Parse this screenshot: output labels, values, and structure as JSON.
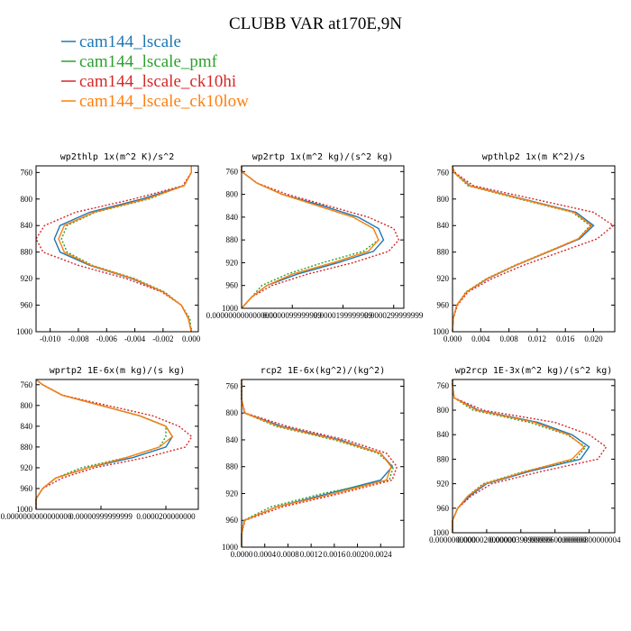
{
  "title": "CLUBB VAR at170E,9N",
  "legend": [
    {
      "name": "cam144_lscale",
      "color": "#1f77b4",
      "dash": false
    },
    {
      "name": "cam144_lscale_pmf",
      "color": "#2ca02c",
      "dash": true
    },
    {
      "name": "cam144_lscale_ck10hi",
      "color": "#d62728",
      "dash": true
    },
    {
      "name": "cam144_lscale_ck10low",
      "color": "#ff7f0e",
      "dash": false
    }
  ],
  "chart_data": [
    {
      "type": "line",
      "title": "wp2thlp   1x(m^2 K)/s^2",
      "ylim": [
        1000,
        750
      ],
      "yticks": [
        "760",
        "800",
        "840",
        "880",
        "920",
        "960",
        "1000"
      ],
      "xlim": [
        -0.011,
        0.0005
      ],
      "xticks": [
        "-0.010",
        "-0.008",
        "-0.006",
        "-0.004",
        "-0.002",
        "0.000"
      ],
      "y": [
        750,
        760,
        780,
        800,
        820,
        840,
        860,
        880,
        900,
        920,
        940,
        960,
        980,
        1000
      ],
      "series": [
        {
          "name": "cam144_lscale",
          "values": [
            0.0,
            0.0,
            -0.0005,
            -0.0035,
            -0.0072,
            -0.0093,
            -0.0097,
            -0.0093,
            -0.0072,
            -0.0042,
            -0.002,
            -0.0007,
            -0.0002,
            0.0
          ]
        },
        {
          "name": "cam144_lscale_pmf",
          "values": [
            0.0,
            0.0,
            -0.0006,
            -0.003,
            -0.0068,
            -0.0088,
            -0.0092,
            -0.0088,
            -0.007,
            -0.004,
            -0.0019,
            -0.0007,
            -0.0001,
            0.0
          ]
        },
        {
          "name": "cam144_lscale_ck10hi",
          "values": [
            0.0,
            0.0,
            -0.0006,
            -0.0041,
            -0.0082,
            -0.0104,
            -0.011,
            -0.0105,
            -0.008,
            -0.0046,
            -0.0021,
            -0.0007,
            -0.0002,
            0.0
          ]
        },
        {
          "name": "cam144_lscale_ck10low",
          "values": [
            0.0,
            0.0,
            -0.0005,
            -0.0032,
            -0.0069,
            -0.009,
            -0.0094,
            -0.009,
            -0.0071,
            -0.0041,
            -0.002,
            -0.0007,
            -0.0002,
            0.0
          ]
        }
      ]
    },
    {
      "type": "line",
      "title": "wp2rtp   1x(m^2 kg)/(s^2 kg)",
      "ylim": [
        1000,
        750
      ],
      "yticks": [
        "760",
        "800",
        "840",
        "880",
        "920",
        "960",
        "1000"
      ],
      "xlim": [
        0.0,
        3.2e-05
      ],
      "xticks": [
        "0.0000000000000000",
        "0.0000099999999",
        "0.0000199999999",
        "0.0000299999999"
      ],
      "y": [
        750,
        760,
        780,
        800,
        820,
        840,
        860,
        880,
        900,
        920,
        940,
        960,
        980,
        1000
      ],
      "series": [
        {
          "name": "cam144_lscale",
          "values": [
            0.0,
            0.0,
            3e-06,
            8e-06,
            1.6e-05,
            2.3e-05,
            2.7e-05,
            2.8e-05,
            2.6e-05,
            1.9e-05,
            1.1e-05,
            5e-06,
            2e-06,
            0.0
          ]
        },
        {
          "name": "cam144_lscale_pmf",
          "values": [
            0.0,
            0.0,
            3e-06,
            8e-06,
            1.5e-05,
            2.2e-05,
            2.6e-05,
            2.7e-05,
            2.4e-05,
            1.6e-05,
            9e-06,
            4e-06,
            2e-06,
            0.0
          ]
        },
        {
          "name": "cam144_lscale_ck10hi",
          "values": [
            0.0,
            0.0,
            3e-06,
            9e-06,
            1.7e-05,
            2.5e-05,
            3e-05,
            3.1e-05,
            2.9e-05,
            2.2e-05,
            1.3e-05,
            6e-06,
            2e-06,
            0.0
          ]
        },
        {
          "name": "cam144_lscale_ck10low",
          "values": [
            0.0,
            0.0,
            3e-06,
            8e-06,
            1.5e-05,
            2.2e-05,
            2.6e-05,
            2.7e-05,
            2.5e-05,
            1.8e-05,
            1e-05,
            5e-06,
            2e-06,
            0.0
          ]
        }
      ]
    },
    {
      "type": "line",
      "title": "wpthlp2   1x(m K^2)/s",
      "ylim": [
        1000,
        750
      ],
      "yticks": [
        "760",
        "800",
        "840",
        "880",
        "920",
        "960",
        "1000"
      ],
      "xlim": [
        0.0,
        0.023
      ],
      "xticks": [
        "0.000",
        "0.004",
        "0.008",
        "0.012",
        "0.016",
        "0.020"
      ],
      "y": [
        750,
        760,
        780,
        800,
        820,
        840,
        860,
        880,
        900,
        920,
        940,
        960,
        980,
        1000
      ],
      "series": [
        {
          "name": "cam144_lscale",
          "values": [
            0.0,
            0.0002,
            0.0025,
            0.01,
            0.0175,
            0.02,
            0.018,
            0.0135,
            0.009,
            0.005,
            0.002,
            0.0006,
            0.0001,
            0.0
          ]
        },
        {
          "name": "cam144_lscale_pmf",
          "values": [
            0.0,
            0.0002,
            0.0022,
            0.0095,
            0.017,
            0.0195,
            0.0178,
            0.0133,
            0.0088,
            0.0048,
            0.0019,
            0.0006,
            0.0001,
            0.0
          ]
        },
        {
          "name": "cam144_lscale_ck10hi",
          "values": [
            0.0,
            0.0003,
            0.003,
            0.0115,
            0.02,
            0.0228,
            0.0205,
            0.0152,
            0.01,
            0.0056,
            0.0022,
            0.0007,
            0.0001,
            0.0
          ]
        },
        {
          "name": "cam144_lscale_ck10low",
          "values": [
            0.0,
            0.0002,
            0.0024,
            0.0098,
            0.0172,
            0.0197,
            0.0178,
            0.0134,
            0.0089,
            0.0049,
            0.002,
            0.0006,
            0.0001,
            0.0
          ]
        }
      ]
    },
    {
      "type": "line",
      "title": "wprtp2   1E-6x(m kg)/(s kg)",
      "ylim": [
        1000,
        750
      ],
      "yticks": [
        "760",
        "800",
        "840",
        "880",
        "920",
        "960",
        "1000"
      ],
      "xlim": [
        0.0,
        2.5e-05
      ],
      "xticks": [
        "0.0000000000000000",
        "0.00000999999999",
        "0.0000200000000"
      ],
      "y": [
        750,
        760,
        780,
        800,
        820,
        840,
        860,
        880,
        900,
        920,
        940,
        960,
        980,
        1000
      ],
      "series": [
        {
          "name": "cam144_lscale",
          "values": [
            0.0,
            1e-06,
            4e-06,
            1e-05,
            1.6e-05,
            2e-05,
            2.1e-05,
            2e-05,
            1.5e-05,
            8e-06,
            3e-06,
            1e-06,
            0.0,
            0.0
          ]
        },
        {
          "name": "cam144_lscale_pmf",
          "values": [
            0.0,
            1e-06,
            4e-06,
            1e-05,
            1.6e-05,
            2e-05,
            2e-05,
            1.9e-05,
            1.4e-05,
            7e-06,
            3e-06,
            1e-06,
            0.0,
            0.0
          ]
        },
        {
          "name": "cam144_lscale_ck10hi",
          "values": [
            0.0,
            1e-06,
            4e-06,
            1.1e-05,
            1.8e-05,
            2.2e-05,
            2.4e-05,
            2.3e-05,
            1.7e-05,
            9e-06,
            4e-06,
            1e-06,
            0.0,
            0.0
          ]
        },
        {
          "name": "cam144_lscale_ck10low",
          "values": [
            0.0,
            1e-06,
            4e-06,
            1e-05,
            1.6e-05,
            2e-05,
            2.1e-05,
            1.9e-05,
            1.4e-05,
            8e-06,
            3e-06,
            1e-06,
            0.0,
            0.0
          ]
        }
      ]
    },
    {
      "type": "line",
      "title": "rcp2   1E-6x(kg^2)/(kg^2)",
      "ylim": [
        1000,
        750
      ],
      "yticks": [
        "760",
        "800",
        "840",
        "880",
        "920",
        "960",
        "1000"
      ],
      "xlim": [
        0.0,
        0.0028
      ],
      "xticks": [
        "0.0000",
        "0.0004",
        "0.0008",
        "0.0012",
        "0.0016",
        "0.0020",
        "0.0024"
      ],
      "y": [
        750,
        760,
        780,
        800,
        820,
        840,
        860,
        880,
        900,
        920,
        940,
        960,
        980,
        1000
      ],
      "series": [
        {
          "name": "cam144_lscale",
          "values": [
            0.0,
            0.0,
            0.0,
            5e-05,
            0.0007,
            0.0017,
            0.0024,
            0.0026,
            0.0024,
            0.0015,
            0.0006,
            5e-05,
            0.0,
            0.0
          ]
        },
        {
          "name": "cam144_lscale_pmf",
          "values": [
            0.0,
            0.0,
            0.0,
            5e-05,
            0.0006,
            0.0016,
            0.00235,
            0.00262,
            0.00255,
            0.0014,
            0.0005,
            4e-05,
            0.0,
            0.0
          ]
        },
        {
          "name": "cam144_lscale_ck10hi",
          "values": [
            0.0,
            0.0,
            0.0,
            6e-05,
            0.0008,
            0.0018,
            0.0025,
            0.00268,
            0.0026,
            0.0017,
            0.0007,
            6e-05,
            0.0,
            0.0
          ]
        },
        {
          "name": "cam144_lscale_ck10low",
          "values": [
            0.0,
            0.0,
            0.0,
            5e-05,
            0.00065,
            0.00165,
            0.0024,
            0.00258,
            0.0025,
            0.0016,
            0.0006,
            5e-05,
            0.0,
            0.0
          ]
        }
      ]
    },
    {
      "type": "line",
      "title": "wp2rcp   1E-3x(m^2 kg)/(s^2 kg)",
      "ylim": [
        1000,
        750
      ],
      "yticks": [
        "760",
        "800",
        "840",
        "880",
        "920",
        "960",
        "1000"
      ],
      "xlim": [
        0.0,
        9.5e-06
      ],
      "xticks": [
        "0.0000000000",
        "0.0000020000000",
        "0.00000399999999",
        "0.00000600000000",
        "0.00000800000004"
      ],
      "y": [
        750,
        760,
        780,
        800,
        820,
        840,
        860,
        880,
        900,
        920,
        940,
        960,
        980,
        1000
      ],
      "series": [
        {
          "name": "cam144_lscale",
          "values": [
            0.0,
            0.0,
            1e-07,
            1.5e-06,
            5e-06,
            7e-06,
            8e-06,
            7.5e-06,
            4.5e-06,
            2e-06,
            1e-06,
            3e-07,
            0.0,
            0.0
          ]
        },
        {
          "name": "cam144_lscale_pmf",
          "values": [
            0.0,
            0.0,
            1e-07,
            1.2e-06,
            4.5e-06,
            6.7e-06,
            7.8e-06,
            7.2e-06,
            4.2e-06,
            1.8e-06,
            9e-07,
            3e-07,
            0.0,
            0.0
          ]
        },
        {
          "name": "cam144_lscale_ck10hi",
          "values": [
            0.0,
            0.0,
            1e-07,
            1.8e-06,
            6e-06,
            8e-06,
            9e-06,
            8.5e-06,
            5.2e-06,
            2.3e-06,
            1.1e-06,
            3e-07,
            0.0,
            0.0
          ]
        },
        {
          "name": "cam144_lscale_ck10low",
          "values": [
            0.0,
            0.0,
            1e-07,
            1.4e-06,
            4.8e-06,
            6.8e-06,
            7.7e-06,
            7e-06,
            4.3e-06,
            1.9e-06,
            9e-07,
            3e-07,
            0.0,
            0.0
          ]
        }
      ]
    }
  ]
}
